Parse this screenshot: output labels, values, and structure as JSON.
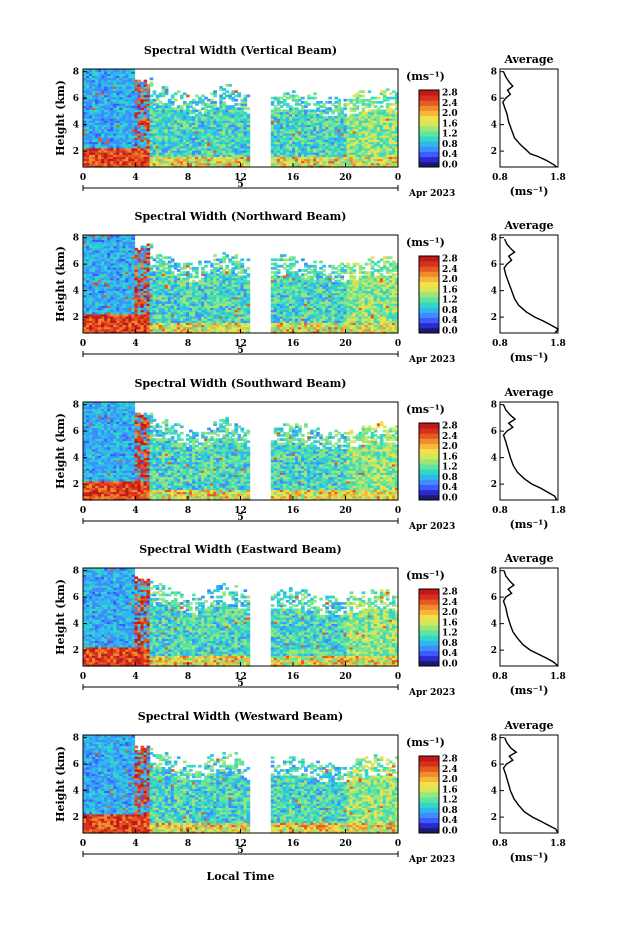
{
  "chart_data": {
    "type": "heatmap",
    "colorbar": {
      "unit_label": "(ms⁻¹)",
      "ticks": [
        "0.0",
        "0.4",
        "0.8",
        "1.2",
        "1.6",
        "2.0",
        "2.4",
        "2.8"
      ],
      "range": [
        0.0,
        3.0
      ],
      "colors": [
        "#1a1a6e",
        "#2a2ad0",
        "#3b5cff",
        "#3f8cff",
        "#2fb8ee",
        "#33d6c8",
        "#5fe3a0",
        "#9ae67a",
        "#d4e85a",
        "#f4e04a",
        "#f7b83a",
        "#f18c2e",
        "#e65a22",
        "#d7301f",
        "#c21818"
      ]
    },
    "x_axis": {
      "ticks": [
        "0",
        "4",
        "8",
        "12",
        "16",
        "20",
        "0"
      ],
      "range": [
        0,
        24
      ],
      "date_marker": "5",
      "date_label": "Apr 2023",
      "xlabel": "Local Time"
    },
    "y_axis": {
      "ylabel": "Height (km)",
      "ticks": [
        "2",
        "4",
        "6",
        "8"
      ],
      "range": [
        0.8,
        8.2
      ]
    },
    "profile": {
      "title": "Average",
      "xlabel": "(ms⁻¹)",
      "x_ticks": [
        "0.8",
        "1.8"
      ],
      "x_range": [
        0.8,
        1.8
      ],
      "y_ticks": [
        "2",
        "4",
        "6",
        "8"
      ],
      "y_range": [
        0.8,
        8.2
      ]
    },
    "panels": [
      {
        "title": "Spectral Width (Vertical Beam)",
        "profile_points": [
          [
            1.78,
            0.8
          ],
          [
            1.72,
            1.0
          ],
          [
            1.6,
            1.3
          ],
          [
            1.45,
            1.6
          ],
          [
            1.32,
            1.8
          ],
          [
            1.25,
            2.1
          ],
          [
            1.15,
            2.5
          ],
          [
            1.05,
            3.0
          ],
          [
            1.0,
            3.6
          ],
          [
            0.95,
            4.2
          ],
          [
            0.92,
            4.8
          ],
          [
            0.88,
            5.3
          ],
          [
            0.85,
            5.7
          ],
          [
            0.9,
            6.0
          ],
          [
            0.98,
            6.3
          ],
          [
            0.93,
            6.6
          ],
          [
            1.02,
            6.9
          ],
          [
            0.96,
            7.2
          ],
          [
            0.9,
            7.6
          ],
          [
            0.86,
            8.0
          ]
        ]
      },
      {
        "title": "Spectral Width (Northward Beam)",
        "profile_points": [
          [
            1.75,
            0.8
          ],
          [
            1.8,
            1.1
          ],
          [
            1.68,
            1.4
          ],
          [
            1.55,
            1.7
          ],
          [
            1.4,
            2.0
          ],
          [
            1.25,
            2.4
          ],
          [
            1.12,
            2.9
          ],
          [
            1.05,
            3.4
          ],
          [
            1.0,
            4.0
          ],
          [
            0.95,
            4.6
          ],
          [
            0.9,
            5.2
          ],
          [
            0.87,
            5.7
          ],
          [
            0.92,
            6.0
          ],
          [
            1.0,
            6.3
          ],
          [
            0.95,
            6.6
          ],
          [
            1.05,
            6.9
          ],
          [
            0.98,
            7.2
          ],
          [
            0.92,
            7.5
          ],
          [
            0.88,
            7.9
          ]
        ]
      },
      {
        "title": "Spectral Width (Southward Beam)",
        "profile_points": [
          [
            1.78,
            0.8
          ],
          [
            1.74,
            1.1
          ],
          [
            1.62,
            1.4
          ],
          [
            1.5,
            1.7
          ],
          [
            1.35,
            2.0
          ],
          [
            1.22,
            2.4
          ],
          [
            1.1,
            2.9
          ],
          [
            1.03,
            3.4
          ],
          [
            0.98,
            4.0
          ],
          [
            0.94,
            4.6
          ],
          [
            0.9,
            5.2
          ],
          [
            0.86,
            5.7
          ],
          [
            0.92,
            6.0
          ],
          [
            1.02,
            6.3
          ],
          [
            0.95,
            6.6
          ],
          [
            1.06,
            6.9
          ],
          [
            0.98,
            7.2
          ],
          [
            0.9,
            7.6
          ],
          [
            0.86,
            8.0
          ]
        ]
      },
      {
        "title": "Spectral Width (Eastward Beam)",
        "profile_points": [
          [
            1.8,
            0.8
          ],
          [
            1.72,
            1.1
          ],
          [
            1.6,
            1.4
          ],
          [
            1.46,
            1.7
          ],
          [
            1.32,
            2.0
          ],
          [
            1.2,
            2.4
          ],
          [
            1.1,
            2.9
          ],
          [
            1.02,
            3.4
          ],
          [
            0.97,
            4.0
          ],
          [
            0.93,
            4.6
          ],
          [
            0.9,
            5.2
          ],
          [
            0.86,
            5.7
          ],
          [
            0.9,
            6.0
          ],
          [
            1.0,
            6.3
          ],
          [
            0.94,
            6.6
          ],
          [
            1.04,
            6.9
          ],
          [
            0.97,
            7.2
          ],
          [
            0.9,
            7.6
          ],
          [
            0.87,
            8.0
          ]
        ]
      },
      {
        "title": "Spectral Width (Westward Beam)",
        "profile_points": [
          [
            1.8,
            0.8
          ],
          [
            1.76,
            1.1
          ],
          [
            1.63,
            1.4
          ],
          [
            1.5,
            1.7
          ],
          [
            1.36,
            2.0
          ],
          [
            1.22,
            2.4
          ],
          [
            1.12,
            2.9
          ],
          [
            1.04,
            3.4
          ],
          [
            0.98,
            4.0
          ],
          [
            0.94,
            4.6
          ],
          [
            0.9,
            5.2
          ],
          [
            0.86,
            5.7
          ],
          [
            0.91,
            6.0
          ],
          [
            1.02,
            6.3
          ],
          [
            0.96,
            6.6
          ],
          [
            1.08,
            6.9
          ],
          [
            0.99,
            7.2
          ],
          [
            0.92,
            7.6
          ],
          [
            0.88,
            8.0
          ]
        ]
      }
    ]
  }
}
